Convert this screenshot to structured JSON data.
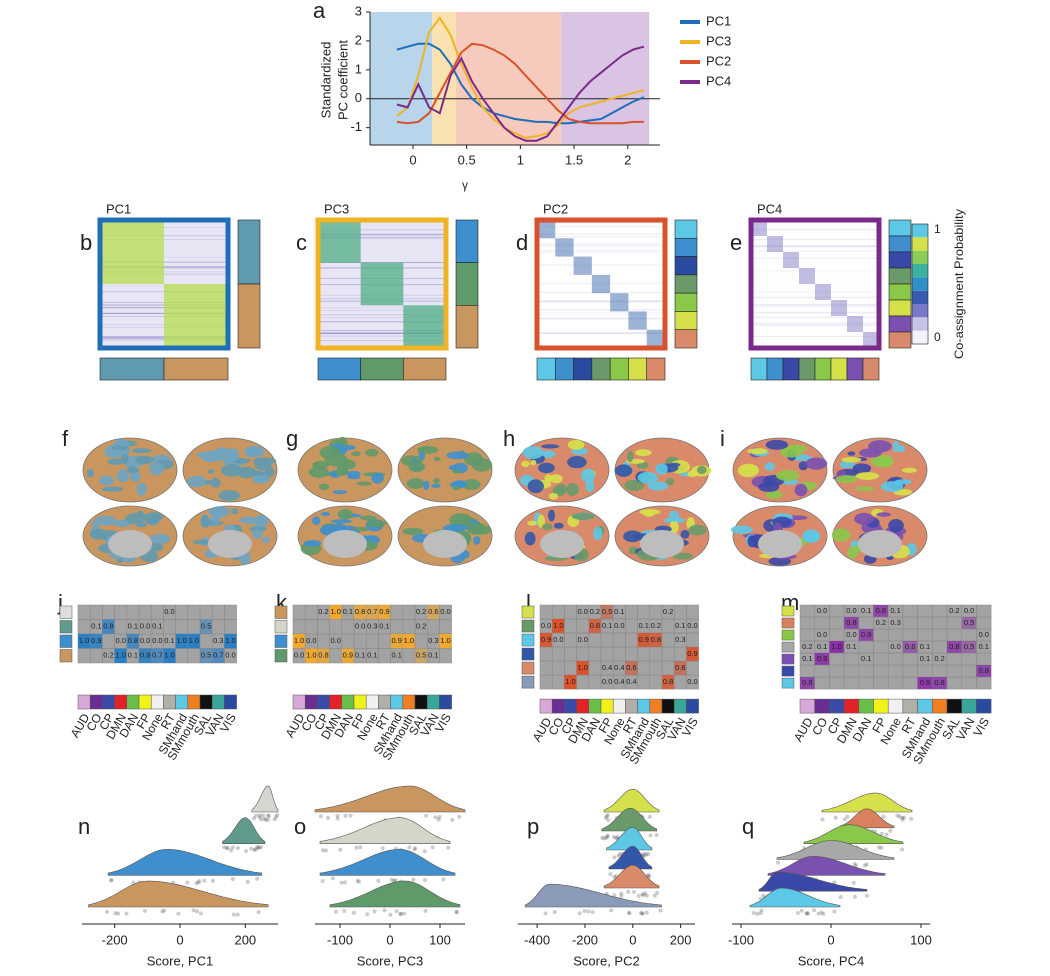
{
  "panel_labels": [
    "a",
    "b",
    "c",
    "d",
    "e",
    "f",
    "g",
    "h",
    "i",
    "j",
    "k",
    "l",
    "m",
    "n",
    "o",
    "p",
    "q"
  ],
  "chart_data": [
    {
      "type": "line",
      "xlabel": "γ",
      "ylabel": [
        "Standardized",
        "PC coefficient"
      ],
      "xlim": [
        -0.4,
        2.3
      ],
      "ylim": [
        -1.6,
        3
      ],
      "xticks": [
        0,
        0.5,
        1,
        1.5,
        2
      ],
      "yticks": [
        -1,
        0,
        1,
        2,
        3
      ],
      "regions": [
        {
          "range": [
            -0.4,
            0.18
          ],
          "color": "#b9d5ec"
        },
        {
          "range": [
            0.18,
            0.4
          ],
          "color": "#f9e2b0"
        },
        {
          "range": [
            0.4,
            1.38
          ],
          "color": "#f6cbbd"
        },
        {
          "range": [
            1.38,
            2.2
          ],
          "color": "#d9c4e3"
        }
      ],
      "x": [
        -0.15,
        -0.05,
        0.05,
        0.15,
        0.25,
        0.35,
        0.45,
        0.55,
        0.65,
        0.75,
        0.85,
        0.95,
        1.05,
        1.15,
        1.25,
        1.35,
        1.45,
        1.55,
        1.65,
        1.75,
        1.85,
        1.95,
        2.05,
        2.15
      ],
      "series": [
        {
          "name": "PC1",
          "color": "#1f6fb8",
          "values": [
            1.7,
            1.8,
            1.9,
            1.9,
            1.7,
            1.2,
            0.5,
            0,
            -0.3,
            -0.5,
            -0.6,
            -0.7,
            -0.75,
            -0.8,
            -0.8,
            -0.85,
            -0.85,
            -0.8,
            -0.75,
            -0.7,
            -0.5,
            -0.3,
            -0.1,
            0.05
          ]
        },
        {
          "name": "PC3",
          "color": "#f0b323",
          "values": [
            -0.6,
            -0.3,
            0.8,
            2.3,
            2.8,
            2.2,
            1.2,
            0.4,
            -0.3,
            -0.7,
            -1.0,
            -1.2,
            -1.35,
            -1.3,
            -1.2,
            -0.9,
            -0.5,
            -0.3,
            -0.2,
            -0.1,
            0.0,
            0.1,
            0.2,
            0.3
          ]
        },
        {
          "name": "PC2",
          "color": "#d9522b",
          "values": [
            -0.8,
            -0.85,
            -0.8,
            -0.5,
            0.2,
            0.9,
            1.6,
            1.9,
            1.85,
            1.7,
            1.5,
            1.2,
            0.8,
            0.4,
            0.0,
            -0.4,
            -0.7,
            -0.8,
            -0.85,
            -0.85,
            -0.85,
            -0.85,
            -0.8,
            -0.8
          ]
        },
        {
          "name": "PC4",
          "color": "#7b2a8c",
          "values": [
            -0.2,
            -0.3,
            0.5,
            -0.3,
            -0.5,
            0.8,
            1.4,
            0.6,
            0.0,
            -0.5,
            -1.0,
            -1.3,
            -1.45,
            -1.45,
            -1.3,
            -0.8,
            -0.3,
            0.2,
            0.6,
            0.9,
            1.2,
            1.5,
            1.7,
            1.8
          ]
        }
      ]
    },
    {
      "type": "raincloud",
      "xlabel": "Score, PC1",
      "xlim": [
        -300,
        300
      ],
      "xticks": [
        -200,
        0,
        200
      ],
      "clouds": [
        {
          "color": "#d6d6d0",
          "peak": 270,
          "range": [
            220,
            300
          ]
        },
        {
          "color": "#5f9a8d",
          "peak": 200,
          "range": [
            130,
            260
          ]
        },
        {
          "color": "#3f8fcf",
          "peak": -40,
          "range": [
            -220,
            250
          ]
        },
        {
          "color": "#c8965e",
          "peak": -100,
          "range": [
            -280,
            270
          ]
        }
      ]
    },
    {
      "type": "raincloud",
      "xlabel": "Score, PC3",
      "xlim": [
        -150,
        150
      ],
      "xticks": [
        -100,
        0,
        100
      ],
      "clouds": [
        {
          "color": "#c8965e",
          "peak": 40,
          "range": [
            -150,
            150
          ]
        },
        {
          "color": "#d6d6c8",
          "peak": 20,
          "range": [
            -140,
            120
          ]
        },
        {
          "color": "#3f8fcf",
          "peak": 20,
          "range": [
            -140,
            130
          ]
        },
        {
          "color": "#5f9a6a",
          "peak": 30,
          "range": [
            -120,
            140
          ]
        }
      ]
    },
    {
      "type": "raincloud",
      "xlabel": "Score, PC2",
      "xlim": [
        -480,
        260
      ],
      "xticks": [
        -400,
        -200,
        0,
        200
      ],
      "clouds": [
        {
          "color": "#d6e04a",
          "peak": 0,
          "range": [
            -120,
            110
          ]
        },
        {
          "color": "#6a9a6a",
          "peak": -10,
          "range": [
            -130,
            100
          ]
        },
        {
          "color": "#5cc8e6",
          "peak": 0,
          "range": [
            -110,
            80
          ]
        },
        {
          "color": "#3256a8",
          "peak": 0,
          "range": [
            -100,
            80
          ]
        },
        {
          "color": "#d98a6a",
          "peak": 0,
          "range": [
            -120,
            110
          ]
        },
        {
          "color": "#8a9ab8",
          "peak": -350,
          "range": [
            -450,
            120
          ]
        }
      ]
    },
    {
      "type": "raincloud",
      "xlabel": "Score, PC4",
      "xlim": [
        -110,
        110
      ],
      "xticks": [
        -100,
        0,
        100
      ],
      "clouds": [
        {
          "color": "#d6e04a",
          "peak": 50,
          "range": [
            -10,
            90
          ]
        },
        {
          "color": "#d9805e",
          "peak": 40,
          "range": [
            10,
            70
          ]
        },
        {
          "color": "#8ac84a",
          "peak": 20,
          "range": [
            -30,
            80
          ]
        },
        {
          "color": "#a8a8a8",
          "peak": 0,
          "range": [
            -60,
            70
          ]
        },
        {
          "color": "#7a50b0",
          "peak": -20,
          "range": [
            -70,
            60
          ]
        },
        {
          "color": "#3a48a8",
          "peak": -60,
          "range": [
            -80,
            40
          ]
        },
        {
          "color": "#5cc8e6",
          "peak": -55,
          "range": [
            -90,
            10
          ]
        }
      ]
    }
  ],
  "matrices": [
    {
      "title": "PC1",
      "frame": "#1f6fb8",
      "block": "#b5dd4e",
      "modules": [
        "#5f9ab0",
        "#c8965e"
      ]
    },
    {
      "title": "PC3",
      "frame": "#f0b323",
      "block": "#4fae86",
      "modules": [
        "#3f8fcf",
        "#5f9a6a",
        "#c8965e"
      ]
    },
    {
      "title": "PC2",
      "frame": "#d9522b",
      "block": "#4a74b4",
      "modules": [
        "#5cc8e6",
        "#3f8fcf",
        "#2a4aa0",
        "#6a9a6a",
        "#8ac84a",
        "#d6e04a",
        "#d98a6a"
      ]
    },
    {
      "title": "PC4",
      "frame": "#7b2a8c",
      "block": "#8b86c8",
      "modules": [
        "#5cc8e6",
        "#3f8fcf",
        "#3a48a8",
        "#6a9a6a",
        "#8ac84a",
        "#d6e04a",
        "#7a50b0",
        "#d98a6a"
      ]
    }
  ],
  "colorbar": {
    "label": "Co-assignment Probability",
    "ticks": [
      0,
      1
    ],
    "colors": [
      "#f2f2fa",
      "#c6c3e8",
      "#7a78c8",
      "#3a5ab0",
      "#2f8fc8",
      "#3bb3a0",
      "#8ccc5a",
      "#d6e04a",
      "#5cc8e6"
    ]
  },
  "brains": [
    {
      "colors": [
        "#c8965e",
        "#5f9ab0",
        "#6ea4c4"
      ]
    },
    {
      "colors": [
        "#c8965e",
        "#3f8fcf",
        "#5f9a6a"
      ]
    },
    {
      "colors": [
        "#d98a6a",
        "#3256a8",
        "#5cc8e6",
        "#6a9a6a",
        "#d6e04a"
      ]
    },
    {
      "colors": [
        "#d98a6a",
        "#7a50b0",
        "#8ac84a",
        "#d6e04a",
        "#5cc8e6",
        "#3a48a8"
      ]
    }
  ],
  "communities": {
    "names": [
      "AUD",
      "CO",
      "CP",
      "DMN",
      "DAN",
      "FP",
      "None",
      "RT",
      "SMhand",
      "SMmouth",
      "SAL",
      "VAN",
      "VIS"
    ],
    "colors": [
      "#d8a8d8",
      "#6a2d91",
      "#3a4aa8",
      "#e32227",
      "#6abf4b",
      "#f2f21b",
      "#f0f0f0",
      "#b0b0a8",
      "#5cc8e6",
      "#f07f22",
      "#111111",
      "#3aa69a",
      "#2a4aa0"
    ]
  },
  "tables": [
    {
      "color": "#2d7fc4",
      "row_colors": [
        "#dedede",
        "#5f9a8d",
        "#3f8fcf",
        "#c8965e"
      ],
      "rows": [
        [
          null,
          null,
          null,
          null,
          null,
          null,
          null,
          "0.0",
          null,
          null,
          null,
          null,
          null
        ],
        [
          null,
          "0.1",
          "0.8",
          null,
          "0.1",
          "0.0",
          "0.1",
          null,
          null,
          null,
          "0.5",
          null,
          null
        ],
        [
          "1.0",
          "0.9",
          null,
          "0.0",
          "0.8",
          "0.0",
          "0.0",
          "0.1",
          "1.0",
          "1.0",
          null,
          "0.3",
          "1.0"
        ],
        [
          null,
          null,
          "0.2",
          "1.0",
          "0.1",
          "0.9",
          "0.7",
          "1.0",
          null,
          null,
          "0.5",
          "0.7",
          "0.0"
        ]
      ]
    },
    {
      "color": "#f0a830",
      "row_colors": [
        "#c8965e",
        "#d6d6c8",
        "#3f8fcf",
        "#5f9a6a"
      ],
      "rows": [
        [
          null,
          null,
          "0.2",
          "1.0",
          "0.1",
          "0.8",
          "0.7",
          "0.9",
          null,
          null,
          "0.2",
          "0.6",
          "0.0"
        ],
        [
          null,
          null,
          null,
          null,
          null,
          "0.0",
          "0.3",
          "0.1",
          null,
          null,
          "0.2",
          null,
          null
        ],
        [
          "1.0",
          "0.0",
          null,
          "0.0",
          null,
          null,
          null,
          null,
          "0.9",
          "1.0",
          null,
          "0.3",
          "1.0"
        ],
        [
          "0.0",
          "1.0",
          "0.8",
          null,
          "0.9",
          "0.1",
          "0.1",
          null,
          "0.1",
          null,
          "0.5",
          "0.1",
          null
        ]
      ]
    },
    {
      "color": "#d9522b",
      "row_colors": [
        "#d6e04a",
        "#6a9a6a",
        "#5cc8e6",
        "#3256a8",
        "#d98a6a",
        "#8a9ab8"
      ],
      "rows": [
        [
          null,
          null,
          null,
          "0.0",
          "0.2",
          "0.5",
          "0.1",
          null,
          null,
          null,
          "0.2",
          null,
          null
        ],
        [
          "0.0",
          "1.0",
          null,
          null,
          "0.8",
          "0.1",
          "0.0",
          null,
          "0.1",
          "0.2",
          null,
          "0.1",
          "0.0"
        ],
        [
          "0.9",
          "0.0",
          null,
          "0.0",
          null,
          null,
          null,
          null,
          "0.9",
          "0.8",
          null,
          "0.3",
          null
        ],
        [
          null,
          null,
          null,
          null,
          null,
          null,
          null,
          null,
          null,
          null,
          null,
          null,
          "0.9"
        ],
        [
          null,
          null,
          null,
          "1.0",
          null,
          "0.4",
          "0.4",
          "0.6",
          null,
          null,
          null,
          "0.6",
          null
        ],
        [
          null,
          null,
          "1.0",
          null,
          null,
          "0.0",
          "0.4",
          "0.4",
          null,
          null,
          "0.8",
          null,
          "0.0"
        ]
      ]
    },
    {
      "color": "#8a2fa8",
      "row_colors": [
        "#d6e04a",
        "#d9805e",
        "#8ac84a",
        "#a8a8a8",
        "#7a50b0",
        "#3a48a8",
        "#5cc8e6"
      ],
      "rows": [
        [
          null,
          "0.0",
          null,
          "0.0",
          "0.1",
          "0.8",
          "0.1",
          null,
          null,
          null,
          "0.2",
          "0.0",
          null
        ],
        [
          null,
          null,
          null,
          "0.8",
          null,
          "0.2",
          "0.3",
          null,
          null,
          null,
          null,
          "0.5",
          null
        ],
        [
          null,
          "0.0",
          null,
          "0.0",
          "0.8",
          null,
          null,
          null,
          null,
          null,
          null,
          null,
          "0.0"
        ],
        [
          "0.2",
          "0.1",
          "1.0",
          "0.1",
          null,
          null,
          "0.0",
          "0.6",
          "0.1",
          null,
          "0.8",
          "0.5",
          "0.1"
        ],
        [
          "0.1",
          "0.9",
          null,
          null,
          "0.1",
          null,
          null,
          null,
          "0.1",
          "0.2",
          null,
          null,
          null
        ],
        [
          null,
          null,
          null,
          null,
          null,
          null,
          null,
          null,
          null,
          null,
          null,
          null,
          "0.8"
        ],
        [
          "0.8",
          null,
          null,
          null,
          null,
          null,
          null,
          null,
          "0.9",
          "0.8",
          null,
          null,
          null
        ]
      ]
    }
  ]
}
